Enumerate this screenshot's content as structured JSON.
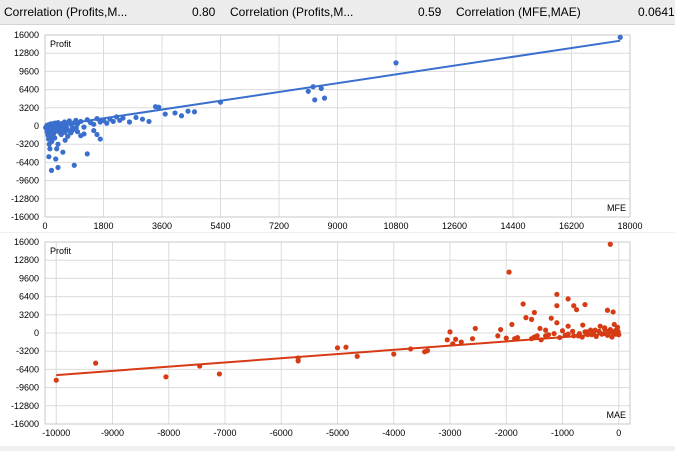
{
  "header": {
    "stat1_label": "Correlation (Profits,M...",
    "stat1_value": "0.80",
    "stat2_label": "Correlation (Profits,M...",
    "stat2_value": "0.59",
    "stat3_label": "Correlation (MFE,MAE)",
    "stat3_value": "0.0641"
  },
  "colors": {
    "top_series": "#3a6fcd",
    "bottom_series": "#d63b14",
    "grid": "#dcdcdc"
  },
  "chart_data": [
    {
      "type": "scatter",
      "ylabel": "Profit",
      "xlabel": "MFE",
      "xlim": [
        0,
        18000
      ],
      "ylim": [
        -16000,
        16000
      ],
      "x_ticks": [
        "0",
        "1800",
        "3600",
        "5400",
        "7200",
        "9000",
        "10800",
        "12600",
        "14400",
        "16200",
        "18000"
      ],
      "y_ticks": [
        "16000",
        "12800",
        "9600",
        "6400",
        "3200",
        "0",
        "-3200",
        "-6400",
        "-9600",
        "-12800",
        "-16000"
      ],
      "trendline": {
        "x": [
          0,
          17700
        ],
        "y": [
          -200,
          15000
        ]
      },
      "points": [
        [
          20,
          -300
        ],
        [
          40,
          -150
        ],
        [
          60,
          100
        ],
        [
          80,
          -500
        ],
        [
          100,
          200
        ],
        [
          120,
          -100
        ],
        [
          150,
          300
        ],
        [
          180,
          -200
        ],
        [
          200,
          400
        ],
        [
          220,
          -700
        ],
        [
          250,
          100
        ],
        [
          280,
          -300
        ],
        [
          300,
          500
        ],
        [
          320,
          -900
        ],
        [
          350,
          200
        ],
        [
          380,
          -400
        ],
        [
          400,
          600
        ],
        [
          420,
          -100
        ],
        [
          450,
          300
        ],
        [
          480,
          -600
        ],
        [
          500,
          400
        ],
        [
          550,
          100
        ],
        [
          600,
          700
        ],
        [
          650,
          -200
        ],
        [
          700,
          500
        ],
        [
          750,
          900
        ],
        [
          800,
          300
        ],
        [
          850,
          -300
        ],
        [
          900,
          600
        ],
        [
          950,
          1000
        ],
        [
          1000,
          400
        ],
        [
          1100,
          800
        ],
        [
          1200,
          -200
        ],
        [
          1300,
          1100
        ],
        [
          1400,
          600
        ],
        [
          1500,
          300
        ],
        [
          1600,
          1300
        ],
        [
          1700,
          700
        ],
        [
          1800,
          1000
        ],
        [
          1900,
          500
        ],
        [
          2000,
          1200
        ],
        [
          2100,
          800
        ],
        [
          2200,
          1600
        ],
        [
          2300,
          1000
        ],
        [
          2400,
          1400
        ],
        [
          2600,
          700
        ],
        [
          2800,
          1500
        ],
        [
          3000,
          1200
        ],
        [
          3200,
          800
        ],
        [
          3400,
          3400
        ],
        [
          3500,
          3300
        ],
        [
          3700,
          2100
        ],
        [
          4000,
          2300
        ],
        [
          4200,
          1800
        ],
        [
          4400,
          2600
        ],
        [
          4600,
          2500
        ],
        [
          5400,
          4200
        ],
        [
          8100,
          6100
        ],
        [
          8250,
          6900
        ],
        [
          8300,
          4600
        ],
        [
          8500,
          6600
        ],
        [
          8600,
          4900
        ],
        [
          10800,
          11100
        ],
        [
          17700,
          15600
        ],
        [
          60,
          -1000
        ],
        [
          90,
          -1600
        ],
        [
          110,
          -2300
        ],
        [
          130,
          -3200
        ],
        [
          150,
          -4000
        ],
        [
          170,
          -1200
        ],
        [
          190,
          -1900
        ],
        [
          210,
          -2700
        ],
        [
          240,
          -800
        ],
        [
          260,
          -1400
        ],
        [
          300,
          -2100
        ],
        [
          330,
          -5800
        ],
        [
          360,
          -4000
        ],
        [
          400,
          -3200
        ],
        [
          450,
          -1100
        ],
        [
          500,
          -1500
        ],
        [
          550,
          -4600
        ],
        [
          620,
          -2500
        ],
        [
          700,
          -1800
        ],
        [
          800,
          -1200
        ],
        [
          900,
          -6900
        ],
        [
          1000,
          -1000
        ],
        [
          1100,
          -1700
        ],
        [
          1200,
          -1400
        ],
        [
          1300,
          -4900
        ],
        [
          1500,
          -800
        ],
        [
          1600,
          -1500
        ],
        [
          1700,
          -2300
        ],
        [
          200,
          -7800
        ],
        [
          400,
          -7300
        ],
        [
          120,
          -5400
        ],
        [
          250,
          -2200
        ],
        [
          330,
          -900
        ],
        [
          470,
          -200
        ],
        [
          540,
          -600
        ],
        [
          610,
          -1100
        ],
        [
          680,
          -500
        ],
        [
          760,
          -900
        ],
        [
          850,
          -700
        ],
        [
          960,
          -300
        ]
      ]
    },
    {
      "type": "scatter",
      "ylabel": "Profit",
      "xlabel": "MAE",
      "xlim": [
        -10200,
        200
      ],
      "ylim": [
        -16000,
        16000
      ],
      "x_ticks": [
        "-10000",
        "-9000",
        "-8000",
        "-7000",
        "-6000",
        "-5000",
        "-4000",
        "-3000",
        "-2000",
        "-1000",
        "0"
      ],
      "y_ticks": [
        "16000",
        "12800",
        "9600",
        "6400",
        "3200",
        "0",
        "-3200",
        "-6400",
        "-9600",
        "-12800",
        "-16000"
      ],
      "trendline": {
        "x": [
          -10000,
          0
        ],
        "y": [
          -7400,
          0
        ]
      },
      "points": [
        [
          -10000,
          -8300
        ],
        [
          -9300,
          -5300
        ],
        [
          -8050,
          -7700
        ],
        [
          -7450,
          -5800
        ],
        [
          -7100,
          -7200
        ],
        [
          -5700,
          -4400
        ],
        [
          -5700,
          -4900
        ],
        [
          -5000,
          -2600
        ],
        [
          -4850,
          -2500
        ],
        [
          -4650,
          -4100
        ],
        [
          -4000,
          -3700
        ],
        [
          -3700,
          -2800
        ],
        [
          -3450,
          -3300
        ],
        [
          -3400,
          -3100
        ],
        [
          -3050,
          -1200
        ],
        [
          -3000,
          200
        ],
        [
          -2950,
          -1900
        ],
        [
          -2900,
          -1100
        ],
        [
          -2800,
          -1600
        ],
        [
          -2600,
          -1000
        ],
        [
          -2550,
          800
        ],
        [
          -2150,
          -500
        ],
        [
          -2100,
          600
        ],
        [
          -2000,
          -900
        ],
        [
          -1800,
          -800
        ],
        [
          -1850,
          -1000
        ],
        [
          -1550,
          -1000
        ],
        [
          -1500,
          -700
        ],
        [
          -1450,
          -500
        ],
        [
          -1400,
          800
        ],
        [
          -1380,
          -1200
        ],
        [
          -1300,
          -500
        ],
        [
          -1250,
          -300
        ],
        [
          -1150,
          -100
        ],
        [
          -1050,
          -800
        ],
        [
          -950,
          -400
        ],
        [
          -900,
          -200
        ],
        [
          -800,
          -500
        ],
        [
          -700,
          -100
        ],
        [
          -650,
          -700
        ],
        [
          -600,
          200
        ],
        [
          -550,
          -300
        ],
        [
          -500,
          500
        ],
        [
          -450,
          100
        ],
        [
          -400,
          -600
        ],
        [
          -350,
          300
        ],
        [
          -300,
          -200
        ],
        [
          -250,
          900
        ],
        [
          -200,
          -400
        ],
        [
          -150,
          600
        ],
        [
          -100,
          100
        ],
        [
          -80,
          1500
        ],
        [
          -50,
          -200
        ],
        [
          -30,
          700
        ],
        [
          -20,
          1000
        ],
        [
          -10,
          200
        ],
        [
          0,
          -300
        ],
        [
          -60,
          400
        ],
        [
          -120,
          -700
        ],
        [
          -180,
          300
        ],
        [
          -260,
          -100
        ],
        [
          -330,
          1200
        ],
        [
          -420,
          500
        ],
        [
          -480,
          -300
        ],
        [
          -560,
          200
        ],
        [
          -640,
          1400
        ],
        [
          -720,
          -500
        ],
        [
          -820,
          300
        ],
        [
          -900,
          1200
        ],
        [
          -1000,
          400
        ],
        [
          -1100,
          1800
        ],
        [
          -1200,
          2600
        ],
        [
          -1300,
          500
        ],
        [
          -1500,
          3600
        ],
        [
          -1550,
          2400
        ],
        [
          -1650,
          2700
        ],
        [
          -1700,
          5100
        ],
        [
          -1900,
          1500
        ],
        [
          -1950,
          10700
        ],
        [
          -1100,
          4800
        ],
        [
          -800,
          4800
        ],
        [
          -750,
          4100
        ],
        [
          -900,
          6000
        ],
        [
          -600,
          5000
        ],
        [
          -1100,
          6800
        ],
        [
          -200,
          4000
        ],
        [
          -100,
          3700
        ],
        [
          -150,
          15600
        ],
        [
          -50,
          200
        ],
        [
          -250,
          700
        ]
      ]
    }
  ]
}
